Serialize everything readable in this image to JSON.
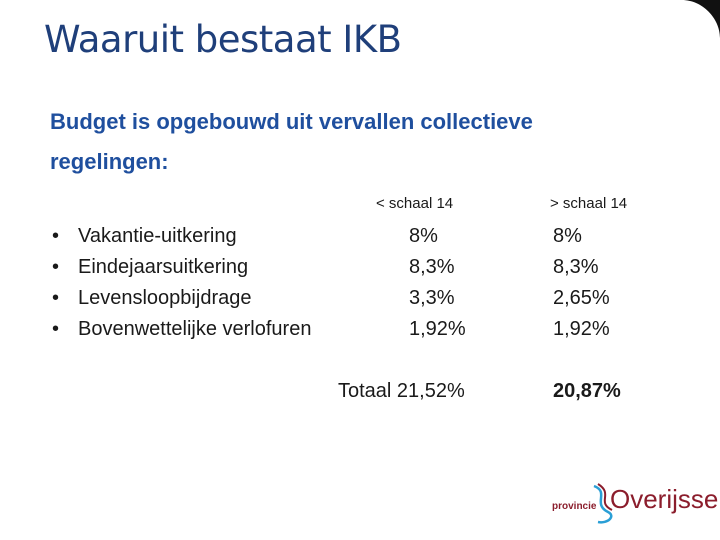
{
  "slide": {
    "title": "Waaruit bestaat IKB",
    "subtitle": "Budget is opgebouwd uit vervallen collectieve regelingen:"
  },
  "table": {
    "columns": [
      "< schaal 14",
      "> schaal 14"
    ],
    "rows": [
      {
        "label": "Vakantie-uitkering",
        "v1": "8%",
        "v2": "8%"
      },
      {
        "label": "Eindejaarsuitkering",
        "v1": "8,3%",
        "v2": "8,3%"
      },
      {
        "label": "Levensloopbijdrage",
        "v1": "3,3%",
        "v2": "2,65%"
      },
      {
        "label": "Bovenwettelijke verlofuren",
        "v1": "1,92%",
        "v2": "1,92%"
      }
    ],
    "bullet": "•",
    "total": {
      "label": "Totaal 21,52%",
      "v2": "20,87%"
    }
  },
  "logo": {
    "prefix": "provincie",
    "text": "Overijssel",
    "color": "#8b1d2c",
    "accent": "#2a9fd6"
  },
  "colors": {
    "title": "#1f3f7a",
    "subtitle": "#1f4f9e"
  }
}
